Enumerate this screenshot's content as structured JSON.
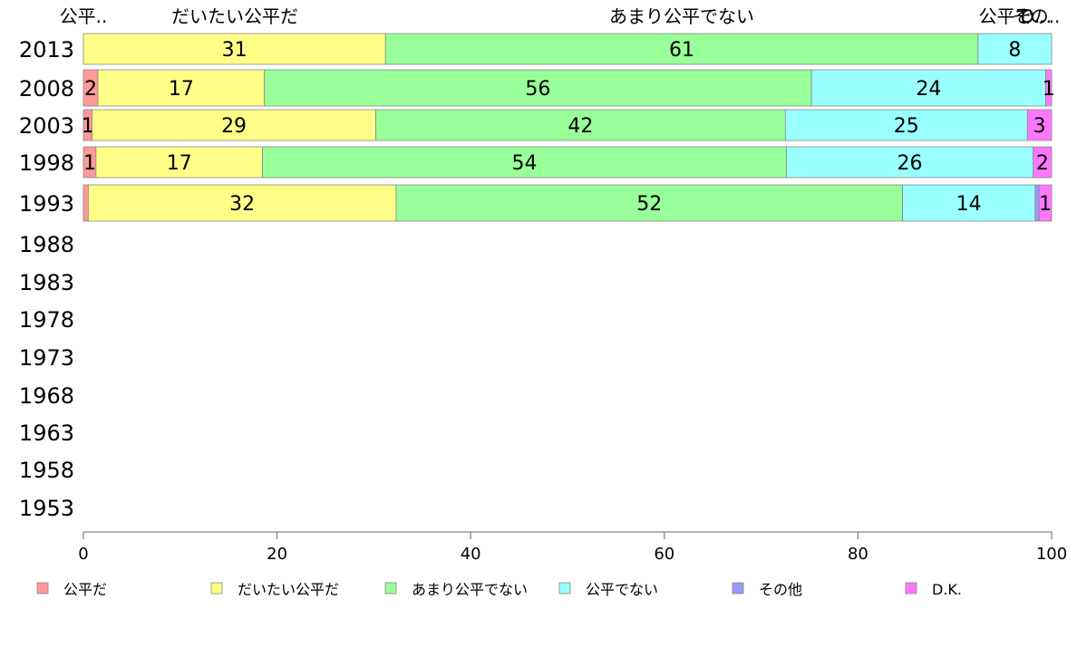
{
  "chart_data": {
    "type": "bar",
    "orientation": "horizontal",
    "stacked": true,
    "categories": [
      "2013",
      "2008",
      "2003",
      "1998",
      "1993",
      "1988",
      "1983",
      "1978",
      "1973",
      "1968",
      "1963",
      "1958",
      "1953"
    ],
    "header_labels": [
      "公平..",
      "だいたい公平だ",
      "あまり公平でない",
      "公平で..",
      "その..",
      "D..."
    ],
    "series": [
      {
        "name": "公平だ",
        "color": "#ff9999",
        "values": [
          0,
          1.5,
          0.9,
          1.3,
          0.5,
          null,
          null,
          null,
          null,
          null,
          null,
          null,
          null
        ],
        "labels": [
          "",
          "2",
          "1",
          "1",
          "",
          "",
          "",
          "",
          "",
          "",
          "",
          "",
          ""
        ]
      },
      {
        "name": "だいたい公平だ",
        "color": "#ffff88",
        "values": [
          31.2,
          17.2,
          29.3,
          17.2,
          31.8,
          null,
          null,
          null,
          null,
          null,
          null,
          null,
          null
        ],
        "labels": [
          "31",
          "17",
          "29",
          "17",
          "32",
          "",
          "",
          "",
          "",
          "",
          "",
          "",
          ""
        ]
      },
      {
        "name": "あまり公平でない",
        "color": "#99ff99",
        "values": [
          61.2,
          56.5,
          42.3,
          54.1,
          52.3,
          null,
          null,
          null,
          null,
          null,
          null,
          null,
          null
        ],
        "labels": [
          "61",
          "56",
          "42",
          "54",
          "52",
          "",
          "",
          "",
          "",
          "",
          "",
          "",
          ""
        ]
      },
      {
        "name": "公平でない",
        "color": "#99ffff",
        "values": [
          7.6,
          24.2,
          25.0,
          25.5,
          13.7,
          null,
          null,
          null,
          null,
          null,
          null,
          null,
          null
        ],
        "labels": [
          "8",
          "24",
          "25",
          "26",
          "14",
          "",
          "",
          "",
          "",
          "",
          "",
          "",
          ""
        ]
      },
      {
        "name": "その他",
        "color": "#9999ff",
        "values": [
          0,
          0,
          0,
          0,
          0.4,
          null,
          null,
          null,
          null,
          null,
          null,
          null,
          null
        ],
        "labels": [
          "",
          "",
          "",
          "",
          "",
          "",
          "",
          "",
          "",
          "",
          "",
          "",
          ""
        ]
      },
      {
        "name": "D.K.",
        "color": "#ff77ff",
        "values": [
          0,
          0.6,
          2.5,
          1.9,
          1.3,
          null,
          null,
          null,
          null,
          null,
          null,
          null,
          null
        ],
        "labels": [
          "",
          "1",
          "3",
          "2",
          "1",
          "",
          "",
          "",
          "",
          "",
          "",
          "",
          ""
        ]
      }
    ],
    "xlim": [
      0,
      100
    ],
    "xticks": [
      0,
      20,
      40,
      60,
      80,
      100
    ],
    "grid": false,
    "legend": "bottom",
    "title": "",
    "xlabel": "",
    "ylabel": ""
  }
}
